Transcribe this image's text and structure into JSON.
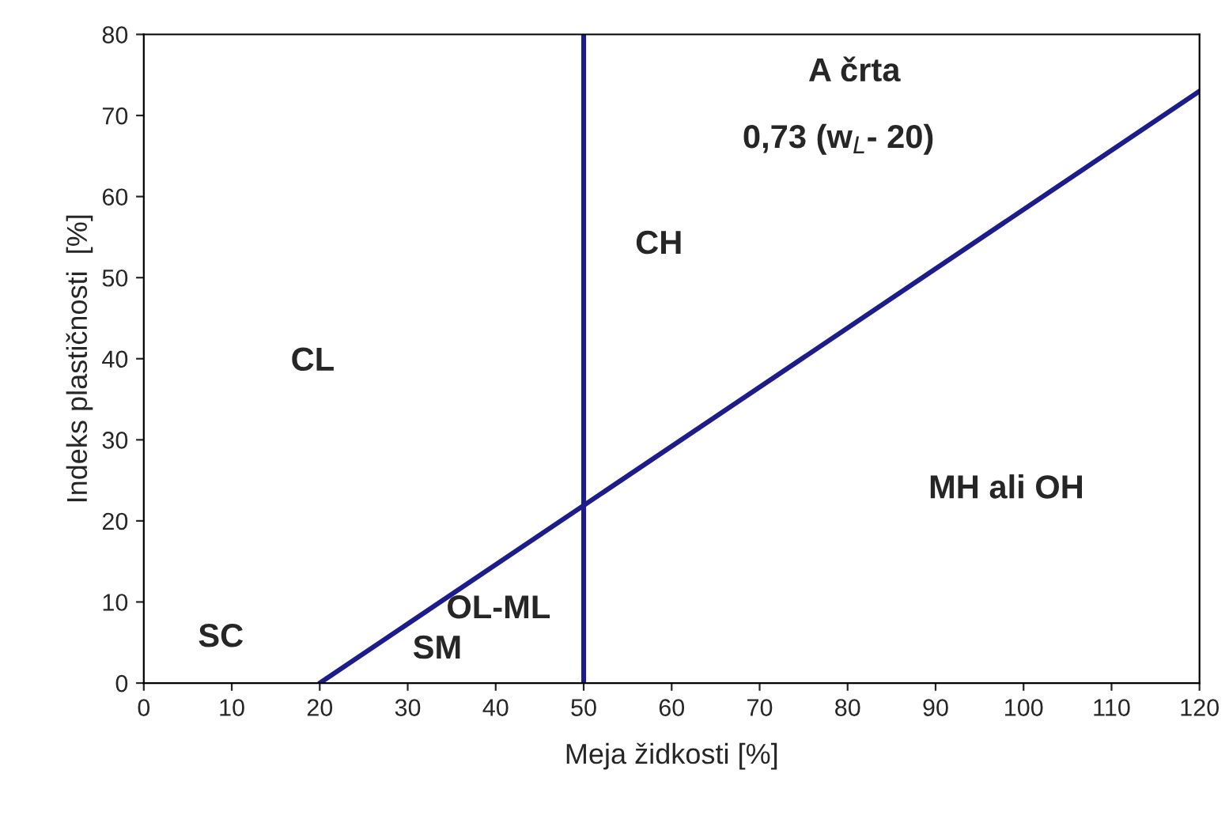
{
  "chart_data": {
    "type": "line",
    "xlabel": "Meja židkosti [%]",
    "ylabel": "Indeks plastičnosti  [%]",
    "x": [
      20,
      120
    ],
    "series": [
      {
        "color": "#1c1c8c",
        "values": [
          0,
          73
        ]
      }
    ],
    "ref_lines": [
      {
        "axis": "x",
        "value": 50,
        "color": "#1c1c8c"
      }
    ],
    "xlim": [
      0,
      120
    ],
    "xticks": [
      0,
      10,
      20,
      30,
      40,
      50,
      60,
      70,
      80,
      90,
      100,
      110,
      120
    ],
    "ylim": [
      0,
      80
    ],
    "yticks": [
      0,
      10,
      20,
      30,
      40,
      50,
      60,
      70,
      80
    ],
    "grid": false,
    "legend": false,
    "marker": "none",
    "line_style": "solid",
    "annotations": [
      "A črta",
      "0,73 (w$_{L}$- 20)",
      "CH",
      "CL",
      "MH ali OH",
      "SC",
      "OL-ML",
      "SM"
    ]
  }
}
